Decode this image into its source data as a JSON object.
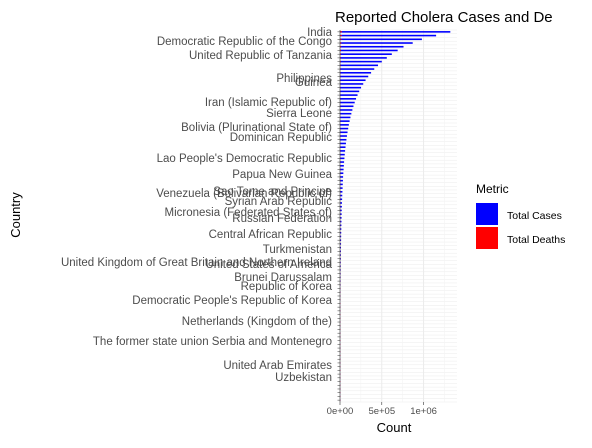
{
  "chart_data": {
    "type": "bar",
    "orientation": "horizontal",
    "title": "Reported Cholera Cases and De",
    "xlabel": "Count",
    "ylabel": "Country",
    "xlim": [
      0,
      1400000
    ],
    "x_ticks": [
      "0e+00",
      "5e+05",
      "1e+06"
    ],
    "x_tick_values": [
      0,
      500000,
      1000000
    ],
    "grid": true,
    "legend": {
      "title": "Metric",
      "position": "right",
      "entries": [
        {
          "name": "Total Cases",
          "color": "#0000ff"
        },
        {
          "name": "Total Deaths",
          "color": "#ff0000"
        }
      ]
    },
    "visible_category_labels": [
      "India",
      "Democratic Republic of the Congo",
      "United Republic of Tanzania",
      "Philippines",
      "Guinea",
      "Iran (Islamic Republic of)",
      "Sierra Leone",
      "Bolivia (Plurinational State of)",
      "Dominican Republic",
      "Lao People's Democratic Republic",
      "Papua New Guinea",
      "Sao Tome and Principe",
      "Venezuela (Bolivarian Republic of)",
      "Syrian Arab Republic",
      "Micronesia (Federated States of)",
      "Russian Federation",
      "Central African Republic",
      "Turkmenistan",
      "United Kingdom of Great Britain and Northern Ireland",
      "United States of America",
      "Brunei Darussalam",
      "Republic of Korea",
      "Democratic People's Republic of Korea",
      "Netherlands (Kingdom of the)",
      "The former state union Serbia and Montenegro",
      "United Arab Emirates",
      "Uzbekistan"
    ],
    "series": [
      {
        "name": "Total Cases",
        "values": [
          1320000,
          1150000,
          980000,
          870000,
          760000,
          690000,
          620000,
          560000,
          500000,
          455000,
          410000,
          372000,
          338000,
          306000,
          278000,
          252000,
          230000,
          210000,
          192000,
          176000,
          161000,
          148000,
          136000,
          125000,
          115000,
          106000,
          98000,
          90000,
          83000,
          77000,
          71000,
          66000,
          61000,
          57000,
          53000,
          49000,
          46000,
          43000,
          40000,
          37000,
          35000,
          33000,
          31000,
          29000,
          27000,
          25500,
          24000,
          22500,
          21000,
          20000,
          19000,
          18000,
          17000,
          16000,
          15000,
          14200,
          13400,
          12700,
          12000,
          11400,
          10800,
          10200,
          9700,
          9200,
          8700,
          8200,
          7800,
          7400,
          7000,
          6600,
          6300,
          6000,
          5700,
          5400,
          5100,
          4800,
          4550,
          4300,
          4050,
          3800,
          3600,
          3400,
          3200,
          3000,
          2850,
          2700,
          2550,
          2400,
          2250,
          2100,
          1950,
          1800,
          1650,
          1500,
          1350,
          1200,
          1050,
          900,
          750,
          600
        ]
      },
      {
        "name": "Total Deaths",
        "values": [
          24000,
          21000,
          18000,
          16000,
          14000,
          12500,
          11200,
          10000,
          9000,
          8100,
          7300,
          6600,
          6000,
          5400,
          4900,
          4400,
          4000,
          3600,
          3300,
          3000,
          2700,
          2450,
          2200,
          2000,
          1800,
          1650,
          1500,
          1350,
          1200,
          1100,
          1000,
          900,
          820,
          740,
          670,
          600,
          540,
          490,
          440,
          400,
          360,
          330,
          300,
          270,
          240,
          220,
          200,
          180,
          160,
          145,
          130,
          118,
          106,
          95,
          86,
          78,
          70,
          63,
          57,
          51,
          46,
          42,
          38,
          34,
          31,
          28,
          25,
          22,
          20,
          18,
          16,
          14,
          13,
          12,
          11,
          10,
          9,
          8,
          7,
          6,
          6,
          5,
          5,
          4,
          4,
          3,
          3,
          3,
          2,
          2,
          2,
          2,
          1,
          1,
          1,
          1,
          1,
          1,
          1,
          1
        ]
      }
    ]
  }
}
